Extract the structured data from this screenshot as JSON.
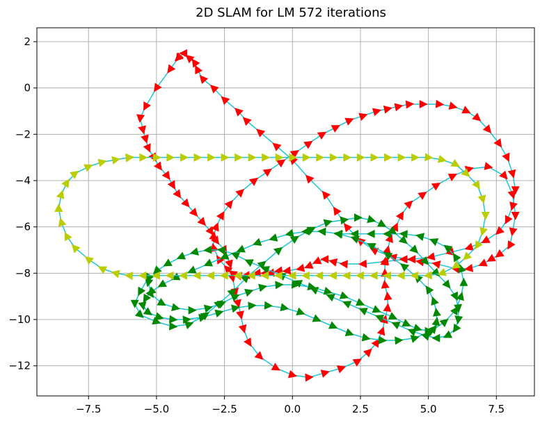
{
  "chart_data": {
    "type": "line",
    "title": "2D SLAM for LM 572 iterations",
    "xlabel": "",
    "ylabel": "",
    "xlim": [
      -9.4,
      8.9
    ],
    "ylim": [
      -13.3,
      2.6
    ],
    "x_ticks": [
      -7.5,
      -5.0,
      -2.5,
      0.0,
      2.5,
      5.0,
      7.5
    ],
    "x_tick_labels": [
      "−7.5",
      "−5.0",
      "−2.5",
      "0.0",
      "2.5",
      "5.0",
      "7.5"
    ],
    "y_ticks": [
      2,
      0,
      -2,
      -4,
      -6,
      -8,
      -10,
      -12
    ],
    "y_tick_labels": [
      "2",
      "0",
      "−2",
      "−4",
      "−6",
      "−8",
      "−10",
      "−12"
    ],
    "grid": true,
    "legend": "none",
    "series": [
      {
        "color": "#ff0000",
        "marker": "triangle-arrow",
        "x": [
          -4.2,
          -4.5,
          -5.0,
          -5.4,
          -5.6,
          -5.5,
          -5.4,
          -5.3,
          -5.1,
          -4.9,
          -4.6,
          -4.4,
          -4.2,
          -3.9,
          -3.6,
          -3.3,
          -3.0,
          -2.8,
          -2.5,
          -2.3,
          -2.2,
          -2.1,
          -2.0,
          -1.9,
          -1.8,
          -1.6,
          -1.2,
          -0.6,
          0.0,
          0.6,
          1.2,
          1.8,
          2.4,
          2.8,
          3.1,
          3.3,
          3.4,
          3.5,
          3.5,
          3.4,
          3.4,
          3.4,
          3.5,
          3.6,
          3.8,
          4.0,
          4.3,
          4.8,
          5.3,
          5.9,
          6.5,
          7.2,
          7.8,
          8.1,
          8.2,
          8.1,
          8.0,
          7.6,
          7.3,
          7.0,
          6.5,
          6.0,
          5.3,
          4.7,
          4.1,
          3.4,
          2.6,
          1.9,
          1.5,
          1.2,
          0.9,
          0.6,
          0.3,
          -0.2,
          -0.5,
          -0.8,
          -1.0,
          -1.3,
          -1.7,
          -2.0,
          -2.2,
          -2.4,
          -2.7,
          -2.9,
          -2.9,
          -2.8,
          -2.6,
          -2.3,
          -1.9,
          -1.4,
          -0.9,
          -0.4,
          0.1,
          0.6,
          1.1,
          1.6,
          2.1,
          2.6,
          3.1,
          3.5,
          3.9,
          4.3,
          4.8,
          5.4,
          5.9,
          6.4,
          6.8,
          7.2,
          7.6,
          7.9,
          8.1,
          8.2,
          8.1,
          7.9,
          7.6,
          7.1,
          6.5,
          5.8,
          5.1,
          4.4,
          3.7,
          3.0,
          2.5,
          2.0,
          1.6,
          1.2,
          0.6,
          0.0,
          -0.6,
          -1.2,
          -1.7,
          -2.0,
          -2.5,
          -2.9,
          -3.3,
          -3.5,
          -3.6,
          -3.8,
          -4.0,
          -4.2
        ],
        "y": [
          1.3,
          0.8,
          0.0,
          -0.8,
          -1.3,
          -1.8,
          -2.2,
          -2.6,
          -3.0,
          -3.4,
          -3.8,
          -4.2,
          -4.6,
          -5.0,
          -5.4,
          -5.8,
          -6.2,
          -6.6,
          -7.0,
          -7.6,
          -8.2,
          -8.8,
          -9.3,
          -9.8,
          -10.4,
          -11.0,
          -11.6,
          -12.1,
          -12.4,
          -12.5,
          -12.3,
          -12.1,
          -11.8,
          -11.4,
          -11.0,
          -10.5,
          -10.0,
          -9.5,
          -9.0,
          -8.5,
          -8.0,
          -7.5,
          -7.0,
          -6.5,
          -6.0,
          -5.5,
          -5.0,
          -4.6,
          -4.2,
          -3.8,
          -3.5,
          -3.4,
          -3.8,
          -4.6,
          -5.5,
          -6.2,
          -6.8,
          -7.2,
          -7.4,
          -7.6,
          -7.8,
          -7.8,
          -7.6,
          -7.5,
          -7.4,
          -7.5,
          -7.6,
          -7.6,
          -7.5,
          -7.4,
          -7.5,
          -7.7,
          -7.8,
          -7.9,
          -7.9,
          -8.0,
          -8.0,
          -8.0,
          -8.1,
          -8.1,
          -8.0,
          -7.8,
          -7.4,
          -6.9,
          -6.4,
          -6.0,
          -5.5,
          -5.0,
          -4.5,
          -4.0,
          -3.6,
          -3.2,
          -2.8,
          -2.4,
          -2.0,
          -1.7,
          -1.4,
          -1.2,
          -1.0,
          -0.9,
          -0.8,
          -0.7,
          -0.7,
          -0.7,
          -0.8,
          -1.0,
          -1.3,
          -1.8,
          -2.4,
          -3.0,
          -3.7,
          -4.4,
          -5.1,
          -5.7,
          -6.2,
          -6.6,
          -6.9,
          -7.1,
          -7.3,
          -7.4,
          -7.3,
          -7.0,
          -6.6,
          -6.0,
          -5.3,
          -4.6,
          -3.9,
          -3.1,
          -2.5,
          -1.9,
          -1.4,
          -1.0,
          -0.5,
          0.0,
          0.4,
          0.8,
          1.1,
          1.3,
          1.5,
          1.3
        ]
      },
      {
        "color": "#008800",
        "marker": "triangle-arrow",
        "x": [
          -5.3,
          -5.6,
          -5.8,
          -5.6,
          -5.0,
          -4.4,
          -3.8,
          -3.2,
          -2.7,
          -2.2,
          -1.7,
          -1.1,
          -0.5,
          0.1,
          0.7,
          1.3,
          1.9,
          2.4,
          2.9,
          3.3,
          3.7,
          4.1,
          4.5,
          4.9,
          5.3,
          5.7,
          6.0,
          6.1,
          6.1,
          6.0,
          5.7,
          5.3,
          4.9,
          4.4,
          3.8,
          3.2,
          2.6,
          2.0,
          1.4,
          0.8,
          0.2,
          -0.4,
          -1.0,
          -1.6,
          -2.1,
          -2.6,
          -3.1,
          -3.6,
          -4.1,
          -4.6,
          -5.0,
          -5.3,
          -5.2,
          -4.8,
          -4.3,
          -3.7,
          -3.1,
          -2.6,
          -2.1,
          -1.6,
          -1.1,
          -0.5,
          0.1,
          0.7,
          1.3,
          1.9,
          2.5,
          3.1,
          3.7,
          4.2,
          4.6,
          5.0,
          5.2,
          5.3,
          5.3,
          5.2,
          5.0,
          4.6,
          4.1,
          3.5,
          2.9,
          2.3,
          1.7,
          1.1,
          0.5,
          -0.1,
          -0.7,
          -1.3,
          -1.9,
          -2.5,
          -3.1,
          -3.7,
          -4.3,
          -4.8,
          -5.2,
          -5.4,
          -5.5,
          -5.3,
          -4.9,
          -4.4,
          -3.9,
          -3.3,
          -2.7,
          -2.1,
          -1.5,
          -0.9,
          -0.3,
          0.3,
          0.9,
          1.5,
          2.1,
          2.7,
          3.3,
          3.9,
          4.5,
          5.1,
          5.6,
          6.0,
          6.2,
          6.3,
          6.2,
          6.0,
          5.7,
          5.2,
          4.7,
          4.1,
          3.5,
          2.9,
          2.3,
          1.7
        ],
        "y": [
          -8.2,
          -8.8,
          -9.3,
          -9.8,
          -10.1,
          -10.3,
          -10.2,
          -9.8,
          -9.3,
          -8.8,
          -8.2,
          -7.6,
          -7.0,
          -6.5,
          -6.1,
          -5.8,
          -5.7,
          -5.6,
          -5.7,
          -5.9,
          -6.2,
          -6.6,
          -7.0,
          -7.5,
          -8.0,
          -8.5,
          -9.0,
          -9.5,
          -10.0,
          -10.4,
          -10.7,
          -10.8,
          -10.7,
          -10.5,
          -10.2,
          -9.9,
          -9.6,
          -9.3,
          -9.0,
          -8.7,
          -8.4,
          -8.1,
          -7.8,
          -7.5,
          -7.2,
          -7.0,
          -7.0,
          -7.1,
          -7.3,
          -7.6,
          -7.9,
          -8.4,
          -8.9,
          -9.3,
          -9.5,
          -9.6,
          -9.5,
          -9.3,
          -9.0,
          -8.8,
          -8.6,
          -8.5,
          -8.5,
          -8.6,
          -8.8,
          -9.0,
          -9.3,
          -9.6,
          -9.9,
          -10.2,
          -10.4,
          -10.5,
          -10.4,
          -10.1,
          -9.7,
          -9.2,
          -8.7,
          -8.2,
          -7.7,
          -7.2,
          -6.8,
          -6.5,
          -6.3,
          -6.2,
          -6.2,
          -6.3,
          -6.5,
          -6.7,
          -7.0,
          -7.3,
          -7.6,
          -7.9,
          -8.2,
          -8.5,
          -8.8,
          -9.1,
          -9.4,
          -9.7,
          -9.9,
          -10.0,
          -10.0,
          -9.9,
          -9.7,
          -9.5,
          -9.4,
          -9.4,
          -9.5,
          -9.7,
          -10.0,
          -10.3,
          -10.6,
          -10.8,
          -10.9,
          -10.9,
          -10.8,
          -10.5,
          -10.1,
          -9.6,
          -9.0,
          -8.4,
          -7.8,
          -7.3,
          -6.9,
          -6.6,
          -6.4,
          -6.3,
          -6.3,
          -6.3,
          -6.3,
          -6.3
        ]
      },
      {
        "color": "#bbcc00",
        "marker": "triangle-arrow",
        "x": [
          -6.0,
          -5.5,
          -5.0,
          -4.5,
          -4.0,
          -3.5,
          -3.0,
          -2.5,
          -2.0,
          -1.5,
          -1.0,
          -0.5,
          0.0,
          0.5,
          1.0,
          1.5,
          2.0,
          2.5,
          3.0,
          3.5,
          4.0,
          4.5,
          5.0,
          5.5,
          6.0,
          6.4,
          6.8,
          7.0,
          7.1,
          7.0,
          6.8,
          6.4,
          6.0,
          5.5,
          5.0,
          4.5,
          4.0,
          3.5,
          3.0,
          2.5,
          2.0,
          1.5,
          1.0,
          0.5,
          0.0,
          -0.5,
          -1.0,
          -1.5,
          -2.0,
          -2.5,
          -3.0,
          -3.5,
          -4.0,
          -4.5,
          -5.0,
          -5.5,
          -6.0,
          -6.5,
          -7.0,
          -7.5,
          -8.0,
          -8.3,
          -8.5,
          -8.6,
          -8.5,
          -8.3,
          -8.0,
          -7.5,
          -7.0,
          -6.5,
          -6.0
        ],
        "y": [
          -3.0,
          -3.0,
          -3.0,
          -3.0,
          -3.0,
          -3.0,
          -3.0,
          -3.0,
          -3.0,
          -3.0,
          -3.0,
          -3.0,
          -3.0,
          -3.0,
          -3.0,
          -3.0,
          -3.0,
          -3.0,
          -3.0,
          -3.0,
          -3.0,
          -3.0,
          -3.0,
          -3.1,
          -3.3,
          -3.7,
          -4.2,
          -4.8,
          -5.5,
          -6.2,
          -6.8,
          -7.3,
          -7.7,
          -8.0,
          -8.1,
          -8.1,
          -8.1,
          -8.1,
          -8.1,
          -8.1,
          -8.1,
          -8.1,
          -8.1,
          -8.1,
          -8.1,
          -8.1,
          -8.1,
          -8.1,
          -8.1,
          -8.1,
          -8.1,
          -8.1,
          -8.1,
          -8.1,
          -8.1,
          -8.1,
          -8.1,
          -8.0,
          -7.8,
          -7.4,
          -6.9,
          -6.4,
          -5.8,
          -5.2,
          -4.6,
          -4.1,
          -3.7,
          -3.4,
          -3.2,
          -3.1,
          -3.0
        ]
      }
    ]
  }
}
